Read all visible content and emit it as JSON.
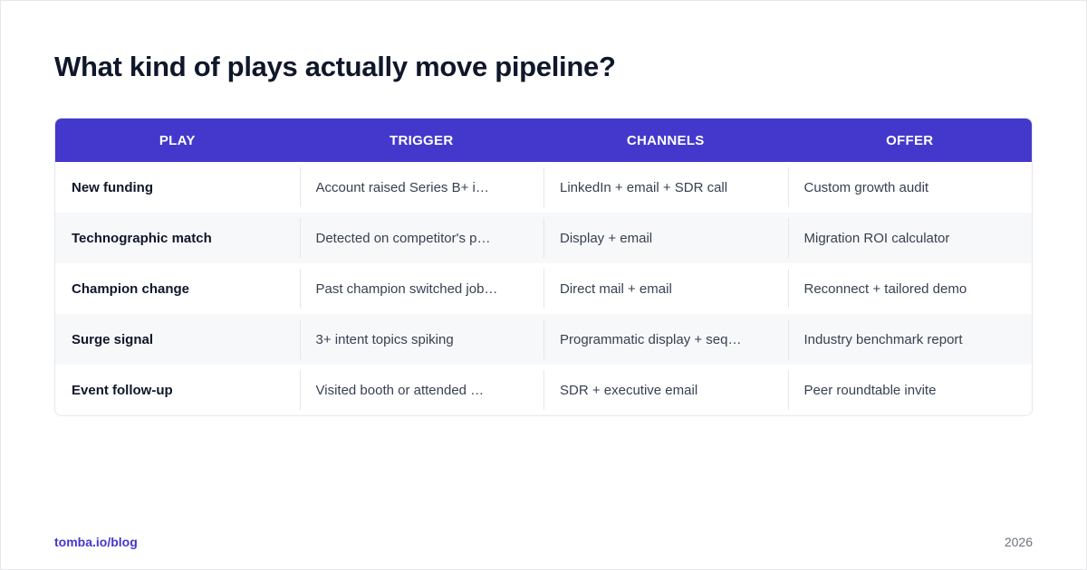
{
  "title": "What kind of plays actually move pipeline?",
  "table": {
    "headers": [
      "PLAY",
      "TRIGGER",
      "CHANNELS",
      "OFFER"
    ],
    "rows": [
      {
        "play": "New funding",
        "trigger": "Account raised Series B+ i…",
        "channels": "LinkedIn + email + SDR call",
        "offer": "Custom growth audit"
      },
      {
        "play": "Technographic match",
        "trigger": "Detected on competitor's p…",
        "channels": "Display + email",
        "offer": "Migration ROI calculator"
      },
      {
        "play": "Champion change",
        "trigger": "Past champion switched job…",
        "channels": "Direct mail + email",
        "offer": "Reconnect + tailored demo"
      },
      {
        "play": "Surge signal",
        "trigger": "3+ intent topics spiking",
        "channels": "Programmatic display + seq…",
        "offer": "Industry benchmark report"
      },
      {
        "play": "Event follow-up",
        "trigger": "Visited booth or attended …",
        "channels": "SDR + executive email",
        "offer": "Peer roundtable invite"
      }
    ]
  },
  "footer": {
    "source": "tomba.io/blog",
    "year": "2026"
  },
  "colors": {
    "header_bg": "#4438cc",
    "accent": "#4438cc",
    "title": "#0f172a"
  }
}
